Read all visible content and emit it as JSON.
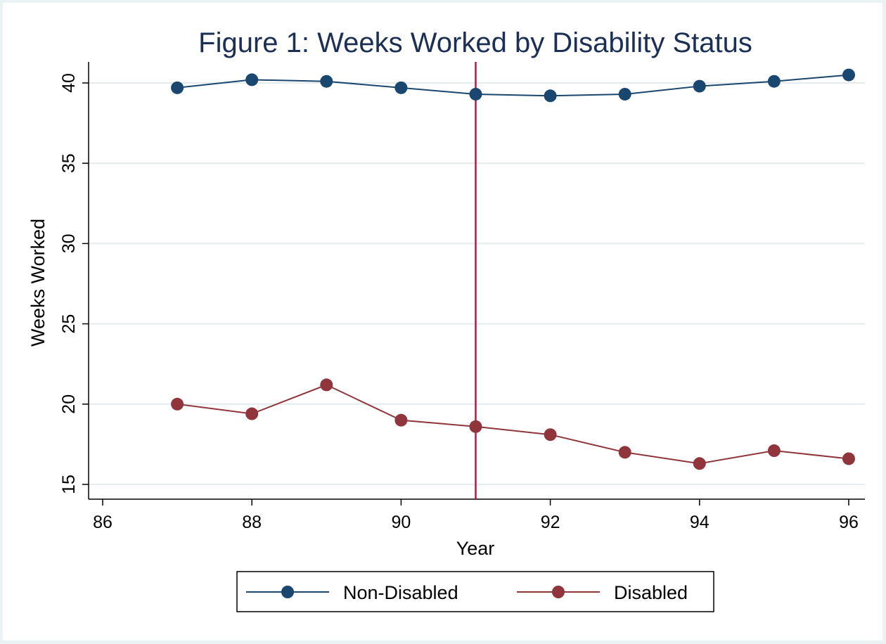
{
  "chart_data": {
    "type": "line",
    "title": "Figure 1: Weeks Worked by Disability Status",
    "xlabel": "Year",
    "ylabel": "Weeks Worked",
    "xlim": [
      86,
      96
    ],
    "ylim": [
      15,
      40
    ],
    "x_ticks": [
      86,
      88,
      90,
      92,
      94,
      96
    ],
    "y_ticks": [
      15,
      20,
      25,
      30,
      35,
      40
    ],
    "grid": "horizontal",
    "legend_position": "bottom",
    "reference_line": {
      "x": 91,
      "color": "#c0143c"
    },
    "x": [
      87,
      88,
      89,
      90,
      91,
      92,
      93,
      94,
      95,
      96
    ],
    "series": [
      {
        "name": "Non-Disabled",
        "color": "#1a476f",
        "values": [
          39.7,
          40.2,
          40.1,
          39.7,
          39.3,
          39.2,
          39.3,
          39.8,
          40.1,
          40.5
        ]
      },
      {
        "name": "Disabled",
        "color": "#90353b",
        "values": [
          20.0,
          19.4,
          21.2,
          19.0,
          18.6,
          18.1,
          17.0,
          16.3,
          17.1,
          16.6
        ]
      }
    ]
  }
}
